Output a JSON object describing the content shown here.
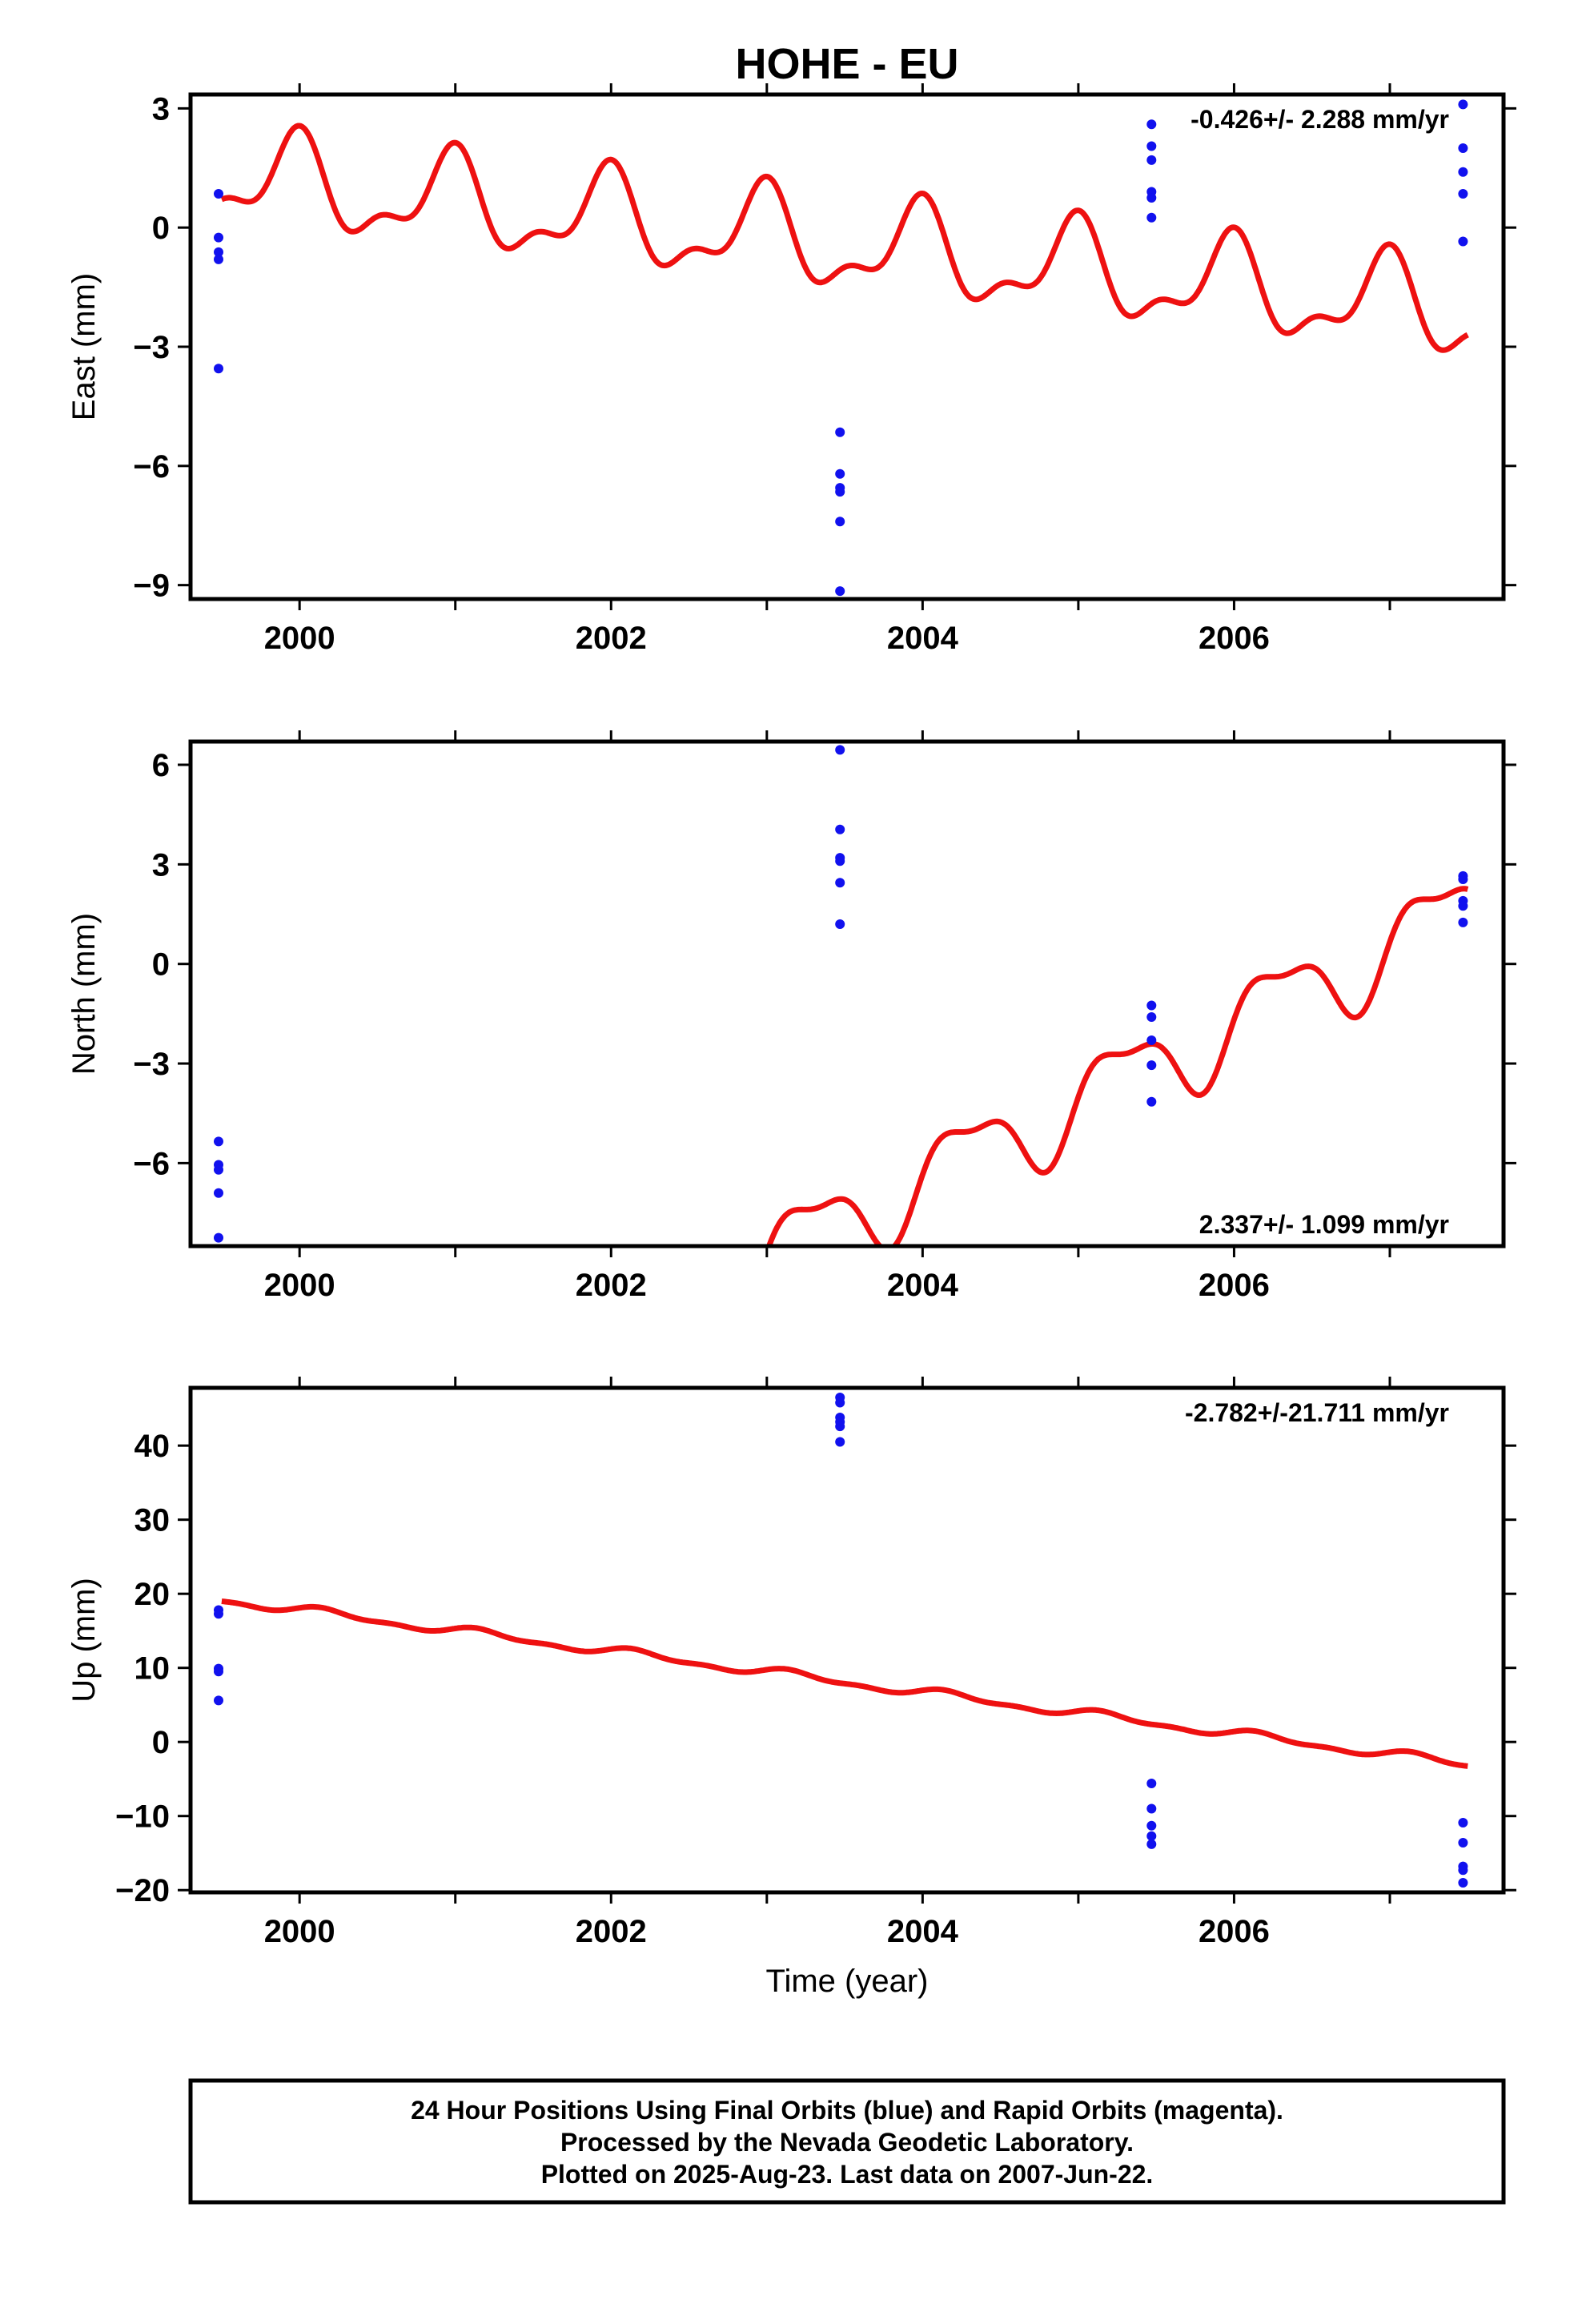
{
  "title": "HOHE - EU",
  "xlabel": "Time (year)",
  "colors": {
    "model": "#ee1111",
    "final": "#1111ee",
    "frame": "#000000"
  },
  "footer": [
    "24 Hour Positions Using Final Orbits (blue) and Rapid Orbits (magenta).",
    "Processed by the Nevada Geodetic Laboratory.",
    "Plotted on 2025-Aug-23. Last data on 2007-Jun-22."
  ],
  "chart_data": [
    {
      "type": "scatter",
      "ylabel": "East (mm)",
      "rate_label": "-0.426+/- 2.288 mm/yr",
      "rate_position": "top-right",
      "xlim": [
        1999.3,
        2007.73
      ],
      "ylim": [
        -9.35,
        3.35
      ],
      "yticks": [
        3,
        0,
        -3,
        -6,
        -9
      ],
      "ytick_labels": [
        "3",
        "0",
        "−3",
        "−6",
        "−9"
      ],
      "xticks": [
        2000,
        2002,
        2004,
        2006
      ],
      "xtick_labels": [
        "2000",
        "2002",
        "2004",
        "2006"
      ],
      "model_curve": {
        "color": "#ee1111",
        "x_range": [
          1999.5,
          2007.5
        ],
        "offset": 1.25,
        "slope": -0.426,
        "amplitudes": [
          1.05,
          0.5
        ],
        "phases_deg": [
          100,
          80
        ]
      },
      "series": [
        {
          "color": "#1111ee",
          "points": [
            [
              1999.48,
              0.85
            ],
            [
              1999.48,
              -0.25
            ],
            [
              1999.48,
              -0.62
            ],
            [
              1999.48,
              -0.8
            ],
            [
              1999.48,
              -3.55
            ],
            [
              2003.47,
              -5.15
            ],
            [
              2003.47,
              -6.2
            ],
            [
              2003.47,
              -6.55
            ],
            [
              2003.47,
              -6.65
            ],
            [
              2003.47,
              -7.4
            ],
            [
              2003.47,
              -9.15
            ],
            [
              2005.47,
              2.6
            ],
            [
              2005.47,
              2.05
            ],
            [
              2005.47,
              1.7
            ],
            [
              2005.47,
              0.9
            ],
            [
              2005.47,
              0.75
            ],
            [
              2005.47,
              0.25
            ],
            [
              2007.47,
              3.1
            ],
            [
              2007.47,
              2.0
            ],
            [
              2007.47,
              1.4
            ],
            [
              2007.47,
              0.85
            ],
            [
              2007.47,
              -0.35
            ]
          ]
        }
      ]
    },
    {
      "type": "scatter",
      "ylabel": "North (mm)",
      "rate_label": "2.337+/- 1.099 mm/yr",
      "rate_position": "bottom-right",
      "xlim": [
        1999.3,
        2007.73
      ],
      "ylim": [
        -8.5,
        6.7
      ],
      "yticks": [
        6,
        3,
        0,
        -3,
        -6
      ],
      "ytick_labels": [
        "6",
        "3",
        "0",
        "−3",
        "−6"
      ],
      "xticks": [
        2000,
        2002,
        2004,
        2006
      ],
      "xtick_labels": [
        "2000",
        "2002",
        "2004",
        "2006"
      ],
      "model_curve": {
        "color": "#ee1111",
        "x_range": [
          1999.5,
          2007.5
        ],
        "offset": -17.0,
        "slope": 2.337,
        "amplitudes": [
          1.2,
          0.45
        ],
        "phases_deg": [
          -10,
          50
        ]
      },
      "series": [
        {
          "color": "#1111ee",
          "points": [
            [
              1999.48,
              -5.35
            ],
            [
              1999.48,
              -6.05
            ],
            [
              1999.48,
              -6.2
            ],
            [
              1999.48,
              -6.9
            ],
            [
              1999.48,
              -8.25
            ],
            [
              2003.47,
              6.45
            ],
            [
              2003.47,
              4.05
            ],
            [
              2003.47,
              3.2
            ],
            [
              2003.47,
              3.1
            ],
            [
              2003.47,
              2.45
            ],
            [
              2003.47,
              1.2
            ],
            [
              2005.47,
              -1.25
            ],
            [
              2005.47,
              -1.6
            ],
            [
              2005.47,
              -2.3
            ],
            [
              2005.47,
              -3.05
            ],
            [
              2005.47,
              -4.15
            ],
            [
              2007.47,
              2.65
            ],
            [
              2007.47,
              2.55
            ],
            [
              2007.47,
              1.9
            ],
            [
              2007.47,
              1.75
            ],
            [
              2007.47,
              1.25
            ]
          ]
        }
      ]
    },
    {
      "type": "scatter",
      "ylabel": "Up (mm)",
      "rate_label": "-2.782+/-21.711 mm/yr",
      "rate_position": "top-right",
      "xlim": [
        1999.3,
        2007.73
      ],
      "ylim": [
        -20.3,
        47.8
      ],
      "yticks": [
        40,
        30,
        20,
        10,
        0,
        -10,
        -20
      ],
      "ytick_labels": [
        "40",
        "30",
        "20",
        "10",
        "0",
        "−10",
        "−20"
      ],
      "xticks": [
        2000,
        2002,
        2004,
        2006
      ],
      "xtick_labels": [
        "2000",
        "2002",
        "2004",
        "2006"
      ],
      "model_curve": {
        "color": "#ee1111",
        "x_range": [
          1999.5,
          2007.5
        ],
        "offset": 19.2,
        "slope": -2.782,
        "amplitudes": [
          0.5,
          0.25
        ],
        "phases_deg": [
          30,
          10
        ]
      },
      "series": [
        {
          "color": "#1111ee",
          "points": [
            [
              1999.48,
              17.8
            ],
            [
              1999.48,
              17.3
            ],
            [
              1999.48,
              9.9
            ],
            [
              1999.48,
              9.5
            ],
            [
              1999.48,
              5.6
            ],
            [
              2003.47,
              46.5
            ],
            [
              2003.47,
              45.8
            ],
            [
              2003.47,
              43.8
            ],
            [
              2003.47,
              43.2
            ],
            [
              2003.47,
              42.6
            ],
            [
              2003.47,
              40.5
            ],
            [
              2005.47,
              -5.6
            ],
            [
              2005.47,
              -9.0
            ],
            [
              2005.47,
              -11.3
            ],
            [
              2005.47,
              -12.7
            ],
            [
              2005.47,
              -13.8
            ],
            [
              2007.47,
              -10.9
            ],
            [
              2007.47,
              -13.6
            ],
            [
              2007.47,
              -16.8
            ],
            [
              2007.47,
              -17.3
            ],
            [
              2007.47,
              -19.0
            ]
          ]
        }
      ]
    }
  ]
}
